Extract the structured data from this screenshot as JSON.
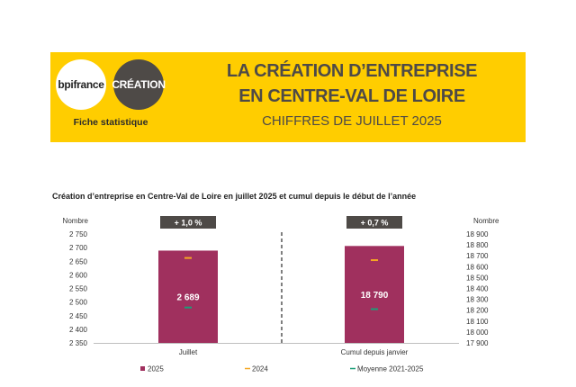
{
  "header": {
    "logo_left": "bpifrance",
    "logo_right": "CRÉATION",
    "subtitle_left": "Fiche statistique",
    "title_line1": "LA CRÉATION D’ENTREPRISE",
    "title_line2": "EN CENTRE-VAL DE LOIRE",
    "title_line3": "CHIFFRES DE JUILLET 2025"
  },
  "colors": {
    "banner": "#ffcd00",
    "bar_2025": "#a0305e",
    "marker_2024": "#f5a623",
    "marker_moyenne": "#1b9e77",
    "badge": "#4e4a47"
  },
  "chart_data": {
    "type": "bar",
    "title": "Création d’entreprise en Centre-Val de Loire en juillet 2025 et cumul depuis le début de l’année",
    "panels": [
      {
        "category": "Juillet",
        "axis_label": "Nombre",
        "axis_side": "left",
        "ylim": [
          2350,
          2750
        ],
        "ticks": [
          "2 750",
          "2 700",
          "2 650",
          "2 600",
          "2 550",
          "2 500",
          "2 450",
          "2 400",
          "2 350"
        ],
        "tick_values": [
          2750,
          2700,
          2650,
          2600,
          2550,
          2500,
          2450,
          2400,
          2350
        ],
        "value_2025": 2689,
        "value_label": "2 689",
        "value_2024": 2662,
        "value_moyenne": 2480,
        "badge": "+ 1,0 %"
      },
      {
        "category": "Cumul depuis janvier",
        "axis_label": "Nombre",
        "axis_side": "right",
        "ylim": [
          17900,
          18900
        ],
        "ticks": [
          "18 900",
          "18 800",
          "18 700",
          "18 600",
          "18 500",
          "18 400",
          "18 300",
          "18 200",
          "18 100",
          "18 000",
          "17 900"
        ],
        "tick_values": [
          18900,
          18800,
          18700,
          18600,
          18500,
          18400,
          18300,
          18200,
          18100,
          18000,
          17900
        ],
        "value_2025": 18790,
        "value_label": "18 790",
        "value_2024": 18660,
        "value_moyenne": 18210,
        "badge": "+ 0,7 %"
      }
    ],
    "legend": [
      {
        "name": "2025",
        "kind": "square"
      },
      {
        "name": "2024",
        "kind": "dash"
      },
      {
        "name": "Moyenne 2021-2025",
        "kind": "dash"
      }
    ],
    "legend_position": "bottom"
  }
}
